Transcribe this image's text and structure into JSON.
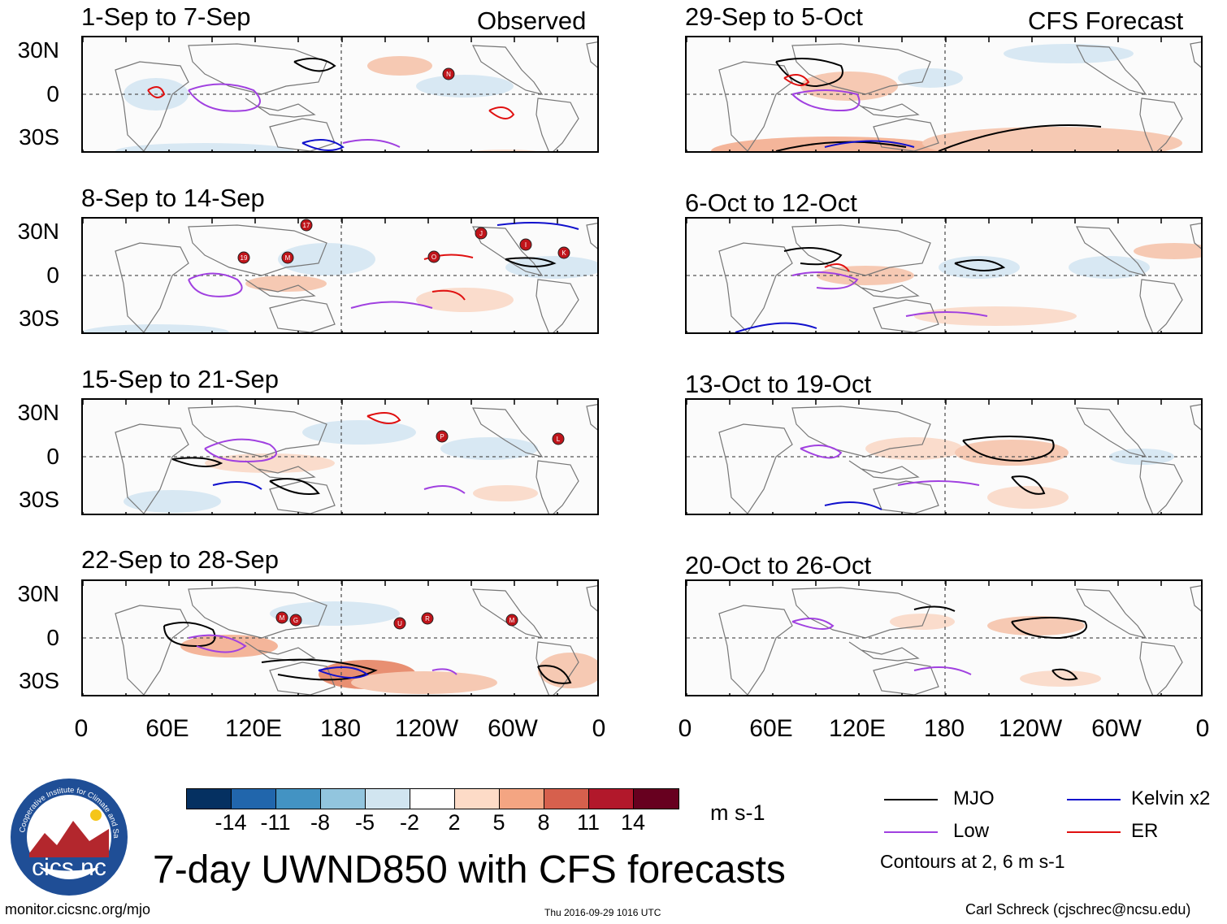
{
  "panels_left": [
    {
      "title": "1-Sep to 7-Sep",
      "tag": "Observed"
    },
    {
      "title": "8-Sep to 14-Sep",
      "tag": ""
    },
    {
      "title": "15-Sep to 21-Sep",
      "tag": ""
    },
    {
      "title": "22-Sep to 28-Sep",
      "tag": ""
    }
  ],
  "panels_right": [
    {
      "title": "29-Sep to 5-Oct",
      "tag": "CFS Forecast"
    },
    {
      "title": "6-Oct to 12-Oct",
      "tag": ""
    },
    {
      "title": "13-Oct to 19-Oct",
      "tag": ""
    },
    {
      "title": "20-Oct to 26-Oct",
      "tag": ""
    }
  ],
  "lat_labels": [
    "30N",
    "0",
    "30S"
  ],
  "lon_labels": [
    "0",
    "60E",
    "120E",
    "180",
    "120W",
    "60W",
    "0"
  ],
  "storm_markers": {
    "p1": [
      "N"
    ],
    "p2": [
      "19",
      "17",
      "M",
      "O",
      "J",
      "I",
      "K"
    ],
    "p3": [
      "P",
      "L"
    ],
    "p4": [
      "M",
      "G",
      "U",
      "R",
      "M"
    ]
  },
  "colorbar": {
    "colors": [
      "#053061",
      "#2166ac",
      "#4393c3",
      "#92c5de",
      "#d1e5f0",
      "#ffffff",
      "#fddbc7",
      "#f4a582",
      "#d6604d",
      "#b2182b",
      "#67001f"
    ],
    "ticks": [
      "-14",
      "-11",
      "-8",
      "-5",
      "-2",
      "2",
      "5",
      "8",
      "11",
      "14"
    ],
    "units": "m s-1"
  },
  "legend": {
    "mjo": {
      "label": "MJO",
      "color": "#000000"
    },
    "kelvin": {
      "label": "Kelvin x2",
      "color": "#1010cc"
    },
    "low": {
      "label": "Low",
      "color": "#a040e0"
    },
    "er": {
      "label": "ER",
      "color": "#e01010"
    },
    "note": "Contours at 2, 6 m s-1"
  },
  "logo": {
    "name": "cics.nc",
    "ring_text": "Cooperative Institute for Climate and Satellites"
  },
  "main_title": "7-day UWND850 with CFS forecasts",
  "footer": {
    "url": "monitor.cicsnc.org/mjo",
    "timestamp": "Thu 2016-09-29 1016 UTC",
    "author": "Carl Schreck (cjschrec@ncsu.edu)"
  }
}
